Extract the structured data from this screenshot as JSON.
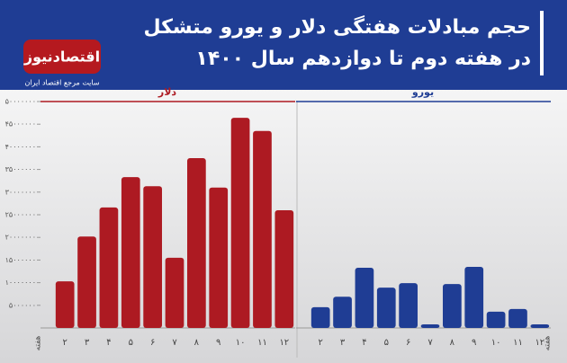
{
  "chart_data": {
    "type": "bar",
    "title": "حجم مبادلات هفتگی دلار و یورو متشکل",
    "subtitle": "در هفته دوم تا دوازدهم سال ۱۴۰۰",
    "logo": "اقتصادنیوز",
    "tagline": "سایت مرجع اقتصاد ایران",
    "x_label": "هفته",
    "categories": [
      "۲",
      "۳",
      "۴",
      "۵",
      "۶",
      "۷",
      "۸",
      "۹",
      "۱۰",
      "۱۱",
      "۱۲"
    ],
    "series": [
      {
        "name": "دلار",
        "color": "#ad1a22",
        "values": [
          10300000,
          20200000,
          26600000,
          33300000,
          31300000,
          15500000,
          37500000,
          31000000,
          46400000,
          43500000,
          26000000
        ]
      },
      {
        "name": "یورو",
        "color": "#1f3d94",
        "values": [
          4600000,
          6900000,
          13300000,
          8900000,
          9900000,
          800000,
          9700000,
          13500000,
          3600000,
          4200000,
          800000
        ]
      }
    ],
    "ylim": [
      0,
      50000000
    ],
    "yticks": [
      {
        "value": 5000000,
        "label": "۵۰۰۰۰۰۰"
      },
      {
        "value": 10000000,
        "label": "۱۰۰۰۰۰۰۰"
      },
      {
        "value": 15000000,
        "label": "۱۵۰۰۰۰۰۰"
      },
      {
        "value": 20000000,
        "label": "۲۰۰۰۰۰۰۰"
      },
      {
        "value": 25000000,
        "label": "۲۵۰۰۰۰۰۰"
      },
      {
        "value": 30000000,
        "label": "۳۰۰۰۰۰۰۰"
      },
      {
        "value": 35000000,
        "label": "۳۵۰۰۰۰۰۰"
      },
      {
        "value": 40000000,
        "label": "۴۰۰۰۰۰۰۰"
      },
      {
        "value": 45000000,
        "label": "۴۵۰۰۰۰۰۰"
      },
      {
        "value": 50000000,
        "label": "۵۰۰۰۰۰۰۰"
      }
    ]
  }
}
